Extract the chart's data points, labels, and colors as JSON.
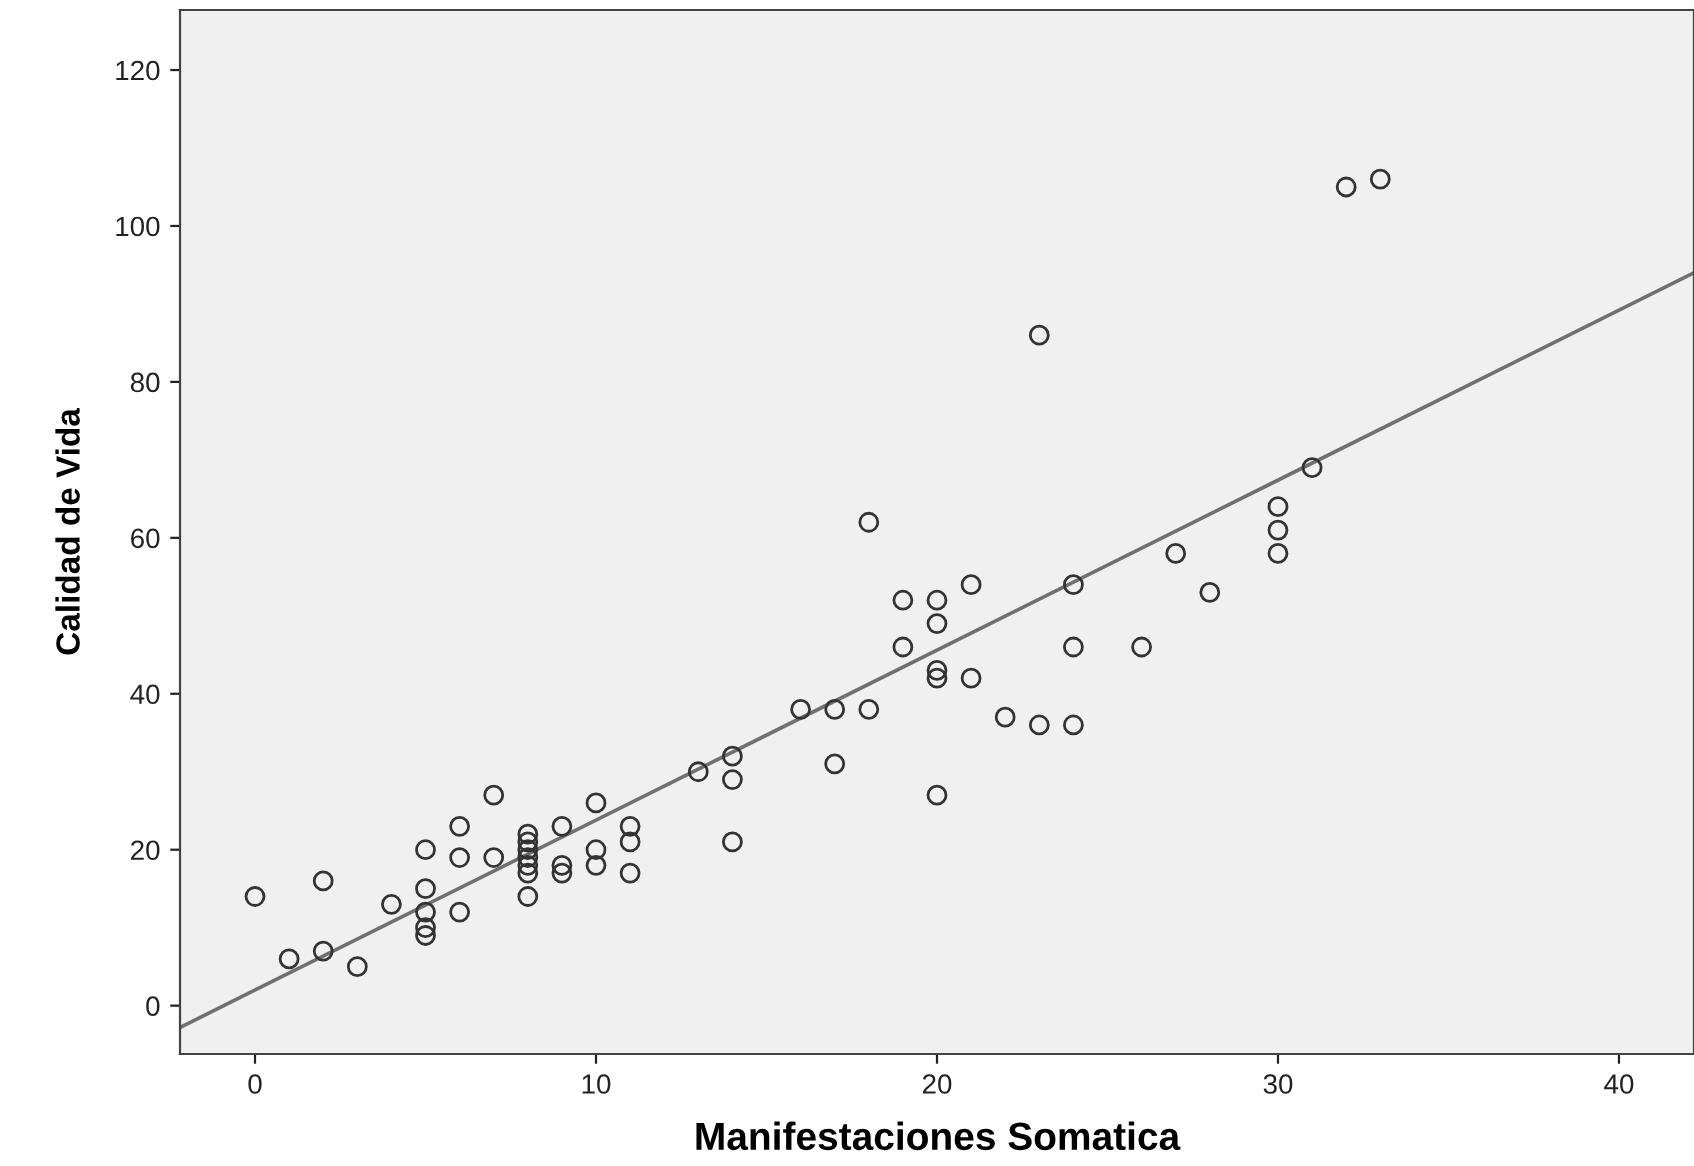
{
  "chart_data": {
    "type": "scatter",
    "xlabel": "Manifestaciones Somatica",
    "ylabel": "Calidad de Vida",
    "xlim": [
      -2.2,
      42.2
    ],
    "ylim": [
      -6.2,
      127.7
    ],
    "xticks": [
      0,
      10,
      20,
      30,
      40
    ],
    "yticks": [
      0,
      20,
      40,
      60,
      80,
      100,
      120
    ],
    "grid": false,
    "series": [
      {
        "marker": "circle",
        "color": "#333333",
        "x": [
          0,
          1,
          2,
          2,
          3,
          4,
          5,
          5,
          5,
          5,
          5,
          6,
          6,
          6,
          7,
          7,
          8,
          8,
          8,
          8,
          8,
          8,
          8,
          9,
          9,
          9,
          10,
          10,
          10,
          11,
          11,
          11,
          13,
          14,
          14,
          14,
          16,
          17,
          17,
          18,
          18,
          19,
          19,
          20,
          20,
          20,
          20,
          20,
          21,
          21,
          22,
          23,
          23,
          24,
          24,
          24,
          26,
          27,
          28,
          30,
          30,
          30,
          31,
          32,
          33
        ],
        "values": [
          14,
          6,
          16,
          7,
          5,
          13,
          20,
          15,
          12,
          10,
          9,
          23,
          19,
          12,
          27,
          19,
          22,
          21,
          20,
          19,
          18,
          17,
          14,
          23,
          18,
          17,
          26,
          20,
          18,
          23,
          21,
          17,
          30,
          32,
          29,
          21,
          38,
          38,
          31,
          62,
          38,
          52,
          46,
          52,
          49,
          43,
          42,
          27,
          54,
          42,
          37,
          86,
          36,
          54,
          46,
          36,
          46,
          58,
          53,
          64,
          61,
          58,
          69,
          105,
          106
        ]
      },
      {
        "type": "line",
        "marker": "none",
        "color": "#707070",
        "x": [
          -2.2,
          42.2
        ],
        "values": [
          -2.8,
          94.0
        ]
      }
    ]
  }
}
